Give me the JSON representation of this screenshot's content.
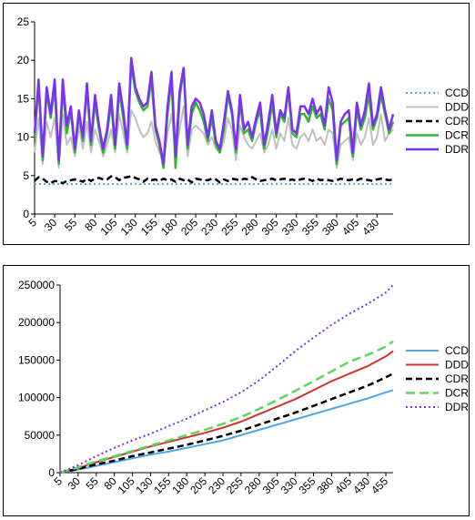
{
  "chart_data": [
    {
      "type": "line",
      "ylim": [
        0,
        25
      ],
      "yticks": [
        0,
        5,
        10,
        15,
        20,
        25
      ],
      "x": [
        5,
        10,
        15,
        20,
        25,
        30,
        35,
        40,
        45,
        50,
        55,
        60,
        65,
        70,
        75,
        80,
        85,
        90,
        95,
        100,
        105,
        110,
        115,
        120,
        125,
        130,
        135,
        140,
        145,
        150,
        155,
        160,
        165,
        170,
        175,
        180,
        185,
        190,
        195,
        200,
        205,
        210,
        215,
        220,
        225,
        230,
        235,
        240,
        245,
        250,
        255,
        260,
        265,
        270,
        275,
        280,
        285,
        290,
        295,
        300,
        305,
        310,
        315,
        320,
        325,
        330,
        335,
        340,
        345,
        350,
        355,
        360,
        365,
        370,
        375,
        380,
        385,
        390,
        395,
        400,
        405,
        410,
        415,
        420,
        425,
        430,
        435,
        440,
        445,
        450
      ],
      "xtick_labels": [
        "5",
        "30",
        "55",
        "80",
        "105",
        "130",
        "155",
        "180",
        "205",
        "230",
        "255",
        "280",
        "305",
        "330",
        "355",
        "380",
        "405",
        "430"
      ],
      "legend_position": "right",
      "series": [
        {
          "name": "CCD",
          "color": "#4da6e8",
          "dash": "2,3",
          "width": 2,
          "values": [
            3.9,
            3.9,
            3.9,
            3.9,
            3.9,
            3.9,
            3.9,
            3.9,
            3.9,
            3.9,
            3.9,
            3.9,
            3.9,
            3.9,
            3.9,
            3.9,
            3.9,
            3.9,
            3.9,
            3.9,
            3.9,
            3.9,
            3.9,
            3.9,
            3.9,
            3.9,
            3.9,
            3.9,
            3.9,
            3.9,
            3.9,
            3.9,
            3.9,
            3.9,
            3.9,
            3.9,
            3.9,
            3.9,
            3.9,
            3.9,
            3.9,
            3.9,
            3.9,
            3.9,
            3.9,
            3.9,
            3.9,
            3.9,
            3.9,
            3.9,
            3.9,
            3.9,
            3.9,
            3.9,
            3.9,
            3.9,
            3.9,
            3.9,
            3.9,
            3.9,
            3.9,
            3.9,
            3.9,
            3.9,
            3.9,
            3.9,
            3.9,
            3.9,
            3.9,
            3.9,
            3.9,
            3.9,
            3.9,
            3.9,
            3.9,
            3.9,
            3.9,
            3.9,
            3.9,
            3.9,
            3.9,
            3.9,
            3.9,
            3.9,
            3.9,
            3.9,
            3.9,
            3.9,
            3.9,
            3.9
          ]
        },
        {
          "name": "DDD",
          "color": "#c0c0c0",
          "dash": "",
          "width": 2,
          "values": [
            8.0,
            12.5,
            6.5,
            12.0,
            10.0,
            12.5,
            6.0,
            13.0,
            9.0,
            10.0,
            7.5,
            11.5,
            8.5,
            12.0,
            8.0,
            11.0,
            9.5,
            7.5,
            9.0,
            11.0,
            8.0,
            13.0,
            10.5,
            8.0,
            13.5,
            12.5,
            11.0,
            10.0,
            10.5,
            12.0,
            9.5,
            8.0,
            7.0,
            10.5,
            13.0,
            8.0,
            11.0,
            14.0,
            7.5,
            11.0,
            11.5,
            11.0,
            10.5,
            9.0,
            10.0,
            8.5,
            8.0,
            9.5,
            12.5,
            11.0,
            7.0,
            11.5,
            10.0,
            9.0,
            8.5,
            9.5,
            10.5,
            8.0,
            9.0,
            11.0,
            8.5,
            10.5,
            9.5,
            12.5,
            9.0,
            8.5,
            10.0,
            10.5,
            9.5,
            11.0,
            9.5,
            10.0,
            9.0,
            11.0,
            10.5,
            6.0,
            9.0,
            9.5,
            10.0,
            7.0,
            10.5,
            9.0,
            10.0,
            12.5,
            9.0,
            10.0,
            13.0,
            9.5,
            10.5,
            11.0
          ]
        },
        {
          "name": "CDR",
          "color": "#000000",
          "dash": "7,4",
          "width": 2.5,
          "values": [
            4.3,
            4.8,
            4.6,
            4.2,
            4.0,
            4.3,
            4.2,
            4.0,
            4.3,
            4.4,
            4.5,
            4.4,
            4.2,
            4.6,
            4.3,
            4.6,
            4.7,
            4.5,
            4.5,
            4.9,
            4.8,
            4.4,
            4.7,
            4.8,
            4.9,
            4.7,
            4.5,
            4.2,
            4.6,
            4.4,
            4.5,
            4.3,
            4.6,
            4.4,
            4.5,
            4.2,
            4.6,
            4.4,
            4.5,
            4.1,
            4.6,
            4.5,
            4.4,
            4.4,
            4.6,
            4.5,
            4.1,
            4.5,
            4.3,
            4.6,
            4.5,
            4.4,
            4.6,
            4.5,
            4.8,
            4.5,
            4.3,
            4.4,
            4.5,
            4.6,
            4.4,
            4.5,
            4.6,
            4.4,
            4.5,
            4.3,
            4.5,
            4.6,
            4.5,
            4.3,
            4.6,
            4.4,
            4.5,
            4.4,
            4.3,
            4.4,
            4.6,
            4.5,
            4.4,
            4.5,
            4.4,
            4.6,
            4.5,
            4.4,
            4.3,
            4.5,
            4.6,
            4.5,
            4.4,
            4.5
          ]
        },
        {
          "name": "DCR",
          "color": "#2db82d",
          "dash": "",
          "width": 2.5,
          "values": [
            10.0,
            17.0,
            7.0,
            16.0,
            12.5,
            16.5,
            6.5,
            16.5,
            10.5,
            13.5,
            8.0,
            13.0,
            9.5,
            16.5,
            9.0,
            14.5,
            11.0,
            8.0,
            10.5,
            14.5,
            8.5,
            16.0,
            12.5,
            8.5,
            19.5,
            16.0,
            14.5,
            13.5,
            14.0,
            17.5,
            11.0,
            9.0,
            6.0,
            13.0,
            17.5,
            6.0,
            15.0,
            19.0,
            8.5,
            13.0,
            14.5,
            13.5,
            12.0,
            9.5,
            12.5,
            9.0,
            8.0,
            11.0,
            15.5,
            13.0,
            8.0,
            14.5,
            10.5,
            11.0,
            9.5,
            12.0,
            13.5,
            8.5,
            11.0,
            14.5,
            10.0,
            13.0,
            12.0,
            16.0,
            10.5,
            10.0,
            13.0,
            13.0,
            12.0,
            14.0,
            12.5,
            13.0,
            11.0,
            15.0,
            13.5,
            6.5,
            11.5,
            12.0,
            12.5,
            7.5,
            13.5,
            11.0,
            12.5,
            15.5,
            11.0,
            12.5,
            15.5,
            13.0,
            10.5,
            12.0
          ]
        },
        {
          "name": "DDR",
          "color": "#7b2ff7",
          "dash": "",
          "width": 2.5,
          "values": [
            10.5,
            17.5,
            7.5,
            16.5,
            13.0,
            17.5,
            7.0,
            17.5,
            11.5,
            14.0,
            8.5,
            13.5,
            10.0,
            17.0,
            9.5,
            15.5,
            11.5,
            8.5,
            11.0,
            15.5,
            9.0,
            17.0,
            13.5,
            9.0,
            20.3,
            16.5,
            15.0,
            14.0,
            14.5,
            18.5,
            11.5,
            9.5,
            6.5,
            14.0,
            18.5,
            7.5,
            16.0,
            19.0,
            9.0,
            14.0,
            15.0,
            14.5,
            13.0,
            10.0,
            13.5,
            9.5,
            8.5,
            12.0,
            16.0,
            13.5,
            8.5,
            15.5,
            11.0,
            12.0,
            10.0,
            12.5,
            14.5,
            9.0,
            12.0,
            15.5,
            10.5,
            13.5,
            12.5,
            16.5,
            11.0,
            10.5,
            14.0,
            14.0,
            13.0,
            15.0,
            13.0,
            14.0,
            11.5,
            16.5,
            14.5,
            7.0,
            12.0,
            13.0,
            13.5,
            8.0,
            14.5,
            11.5,
            13.5,
            17.0,
            11.5,
            13.0,
            16.5,
            13.5,
            11.0,
            13.0
          ]
        }
      ]
    },
    {
      "type": "line",
      "ylim": [
        0,
        250000
      ],
      "yticks": [
        0,
        50000,
        100000,
        150000,
        200000,
        250000
      ],
      "ytick_labels": [
        "0",
        "50000",
        "100000",
        "150000",
        "200000",
        "250000"
      ],
      "xtick_labels": [
        "5",
        "30",
        "55",
        "80",
        "105",
        "130",
        "155",
        "180",
        "205",
        "230",
        "255",
        "280",
        "305",
        "330",
        "355",
        "380",
        "405",
        "430",
        "455"
      ],
      "x_points": [
        5,
        30,
        55,
        80,
        105,
        130,
        155,
        180,
        205,
        230,
        255,
        280,
        305,
        330,
        355,
        380,
        405,
        430,
        455,
        465
      ],
      "legend_position": "right",
      "series": [
        {
          "name": "CCD",
          "color": "#4da6e8",
          "dash": "",
          "width": 2,
          "values": [
            0,
            4000,
            9000,
            14000,
            19000,
            24000,
            28000,
            33000,
            38000,
            43000,
            50000,
            57000,
            64000,
            71000,
            78000,
            85000,
            92000,
            99000,
            107000,
            110000
          ]
        },
        {
          "name": "DDD",
          "color": "#d0312d",
          "dash": "",
          "width": 2,
          "values": [
            0,
            6000,
            14000,
            21000,
            28000,
            35000,
            41000,
            47000,
            53000,
            60000,
            68000,
            78000,
            88000,
            98000,
            110000,
            122000,
            132000,
            142000,
            155000,
            162000
          ]
        },
        {
          "name": "CDR",
          "color": "#000000",
          "dash": "7,4",
          "width": 2.5,
          "values": [
            0,
            5000,
            11000,
            16000,
            22000,
            27000,
            32000,
            37000,
            43000,
            49000,
            56000,
            64000,
            72000,
            80000,
            89000,
            98000,
            107000,
            116000,
            127000,
            132000
          ]
        },
        {
          "name": "DCR",
          "color": "#5cd65c",
          "dash": "10,5",
          "width": 2.5,
          "values": [
            0,
            7000,
            15000,
            22000,
            29000,
            36000,
            43000,
            50000,
            57000,
            65000,
            74000,
            85000,
            97000,
            109000,
            122000,
            135000,
            148000,
            157000,
            168000,
            175000
          ]
        },
        {
          "name": "DDR",
          "color": "#7b2ff7",
          "dash": "2,3",
          "width": 2,
          "values": [
            0,
            10000,
            22000,
            33000,
            43000,
            52000,
            62000,
            72000,
            83000,
            94000,
            107000,
            123000,
            142000,
            162000,
            180000,
            197000,
            212000,
            225000,
            240000,
            250000
          ]
        }
      ]
    }
  ]
}
